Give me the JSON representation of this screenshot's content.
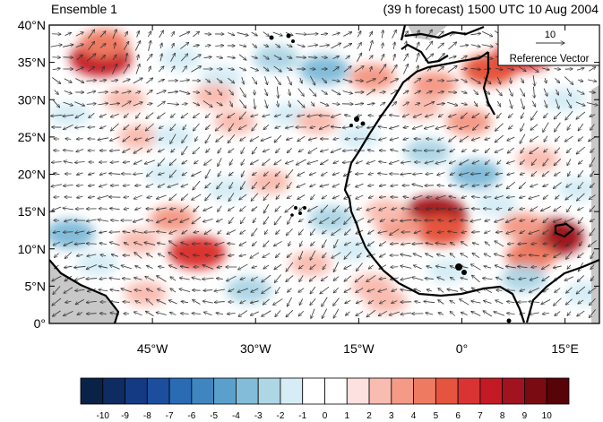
{
  "header": {
    "left_title": "Ensemble 1",
    "right_title": "(39 h forecast) 1500 UTC 10 Aug 2004"
  },
  "map": {
    "y_tick_labels": [
      "40°N",
      "35°N",
      "30°N",
      "25°N",
      "20°N",
      "15°N",
      "10°N",
      "5°N",
      "0°"
    ],
    "x_tick_labels": [
      "45°W",
      "30°W",
      "15°W",
      "0°",
      "15°E"
    ],
    "reference_vector": {
      "value": "10",
      "label": "Reference Vector"
    },
    "land_mask_color": "#c8c8c8",
    "coastline_color": "#000000",
    "blobs": [
      {
        "lon": -52.5,
        "lat": 35.5,
        "v": 7
      },
      {
        "lon": -52,
        "lat": 37.5,
        "v": 4
      },
      {
        "lon": -57,
        "lat": 28,
        "v": -2
      },
      {
        "lon": -49,
        "lat": 30,
        "v": 2
      },
      {
        "lon": -41,
        "lat": 35.5,
        "v": -2
      },
      {
        "lon": -35,
        "lat": 33,
        "v": -2
      },
      {
        "lon": -27,
        "lat": 35.5,
        "v": -3
      },
      {
        "lon": -20,
        "lat": 34,
        "v": -4
      },
      {
        "lon": -13,
        "lat": 33,
        "v": 3
      },
      {
        "lon": -36,
        "lat": 30.5,
        "v": 2
      },
      {
        "lon": -47,
        "lat": 25,
        "v": 2
      },
      {
        "lon": -42,
        "lat": 25,
        "v": -2
      },
      {
        "lon": -33,
        "lat": 27,
        "v": 2
      },
      {
        "lon": -25,
        "lat": 28,
        "v": -2
      },
      {
        "lon": -21,
        "lat": 27,
        "v": 2
      },
      {
        "lon": -15,
        "lat": 25,
        "v": -2
      },
      {
        "lon": -4,
        "lat": 32,
        "v": 3
      },
      {
        "lon": 4,
        "lat": 34,
        "v": 5
      },
      {
        "lon": 9,
        "lat": 36,
        "v": 6
      },
      {
        "lon": 1,
        "lat": 27,
        "v": 3
      },
      {
        "lon": -6,
        "lat": 29,
        "v": 2
      },
      {
        "lon": -5,
        "lat": 23,
        "v": -3
      },
      {
        "lon": 2,
        "lat": 20,
        "v": -4
      },
      {
        "lon": 11,
        "lat": 22,
        "v": 2
      },
      {
        "lon": 15,
        "lat": 30,
        "v": -2
      },
      {
        "lon": 17,
        "lat": 18,
        "v": -2
      },
      {
        "lon": -4,
        "lat": 14.5,
        "v": 8
      },
      {
        "lon": -3,
        "lat": 12.5,
        "v": 5
      },
      {
        "lon": -9,
        "lat": 13,
        "v": 3
      },
      {
        "lon": -11,
        "lat": 15,
        "v": 2
      },
      {
        "lon": -19,
        "lat": 14,
        "v": -3
      },
      {
        "lon": -16,
        "lat": 10,
        "v": -2
      },
      {
        "lon": -28,
        "lat": 19,
        "v": 2
      },
      {
        "lon": -34,
        "lat": 18,
        "v": -2
      },
      {
        "lon": -42,
        "lat": 14,
        "v": 3
      },
      {
        "lon": -47,
        "lat": 11,
        "v": 2
      },
      {
        "lon": -38.5,
        "lat": 9.5,
        "v": 6
      },
      {
        "lon": -57,
        "lat": 12,
        "v": -4
      },
      {
        "lon": -53,
        "lat": 8,
        "v": -2
      },
      {
        "lon": -31,
        "lat": 4.5,
        "v": -3
      },
      {
        "lon": -22,
        "lat": 8,
        "v": 2
      },
      {
        "lon": -13,
        "lat": 5,
        "v": 2
      },
      {
        "lon": -11,
        "lat": 3,
        "v": 2
      },
      {
        "lon": -2,
        "lat": 7,
        "v": -2
      },
      {
        "lon": 13,
        "lat": 11.5,
        "v": 8
      },
      {
        "lon": 10,
        "lat": 9,
        "v": 4
      },
      {
        "lon": 9,
        "lat": 6,
        "v": -3
      },
      {
        "lon": 18,
        "lat": 4,
        "v": -2
      },
      {
        "lon": -46,
        "lat": 4,
        "v": 2
      },
      {
        "lon": 5,
        "lat": 16,
        "v": -2
      },
      {
        "lon": -43,
        "lat": 20,
        "v": -2
      },
      {
        "lon": 9,
        "lat": 13,
        "v": 3
      }
    ]
  },
  "colorbar": {
    "labels": [
      "-10",
      "-9",
      "-8",
      "-7",
      "-6",
      "-5",
      "-4",
      "-3",
      "-2",
      "-1",
      "0",
      "1",
      "2",
      "3",
      "4",
      "5",
      "6",
      "7",
      "8",
      "9",
      "10"
    ],
    "colors": [
      "#0b2247",
      "#0e2c62",
      "#133a83",
      "#1b4f9e",
      "#2a6cb3",
      "#3f86c0",
      "#5ba0cc",
      "#82bcd9",
      "#aed6e5",
      "#d6edf6",
      "#ffffff",
      "#ffffff",
      "#fde0e0",
      "#f9bcb0",
      "#f49a87",
      "#ee7a62",
      "#e5543e",
      "#d93433",
      "#c41a26",
      "#a1131e",
      "#7b0b12",
      "#560407"
    ]
  }
}
